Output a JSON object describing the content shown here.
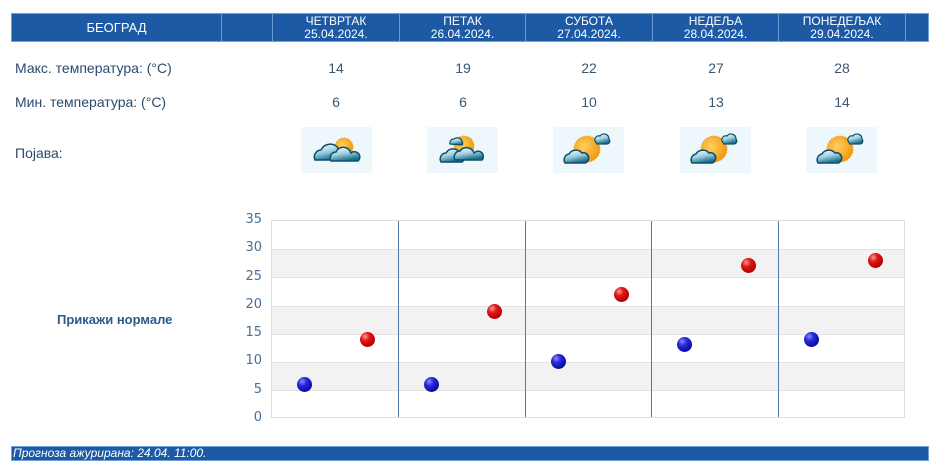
{
  "header": {
    "city": "БЕОГРАД",
    "days": [
      {
        "day": "ЧЕТВРТАК",
        "date": "25.04.2024."
      },
      {
        "day": "ПЕТАК",
        "date": "26.04.2024."
      },
      {
        "day": "СУБОТА",
        "date": "27.04.2024."
      },
      {
        "day": "НЕДЕЉА",
        "date": "28.04.2024."
      },
      {
        "day": "ПОНЕДЕЉАК",
        "date": "29.04.2024."
      }
    ]
  },
  "rows": {
    "max_label": "Макс. температура: (°C)",
    "min_label": "Мин. температура: (°C)",
    "phenomenon_label": "Појава:",
    "max": [
      "14",
      "19",
      "22",
      "27",
      "28"
    ],
    "min": [
      "6",
      "6",
      "10",
      "13",
      "14"
    ],
    "icons": [
      "partly-cloudy-icon",
      "mostly-sunny-icon",
      "sunny-cloudy-icon",
      "sunny-cloudy-icon",
      "sunny-cloudy-icon"
    ]
  },
  "normals_link": "Прикажи нормале",
  "footer": {
    "updated": "Прогноза ажурирана:  24.04. 11:00."
  },
  "colors": {
    "header_bg": "#1c5aa6",
    "min_dot": "#0a0aa8",
    "max_dot": "#c00000"
  },
  "chart_data": {
    "type": "scatter",
    "title": "",
    "xlabel": "",
    "ylabel": "",
    "categories": [
      "25.04.2024.",
      "26.04.2024.",
      "27.04.2024.",
      "28.04.2024.",
      "29.04.2024."
    ],
    "series": [
      {
        "name": "Мин. температура",
        "color": "#0a0aa8",
        "values": [
          6,
          6,
          10,
          13,
          14
        ]
      },
      {
        "name": "Макс. температура",
        "color": "#c00000",
        "values": [
          14,
          19,
          22,
          27,
          28
        ]
      }
    ],
    "ylim": [
      0,
      35
    ],
    "yticks": [
      "0",
      "5",
      "10",
      "15",
      "20",
      "25",
      "30",
      "35"
    ],
    "grid": true,
    "legend": "none"
  }
}
